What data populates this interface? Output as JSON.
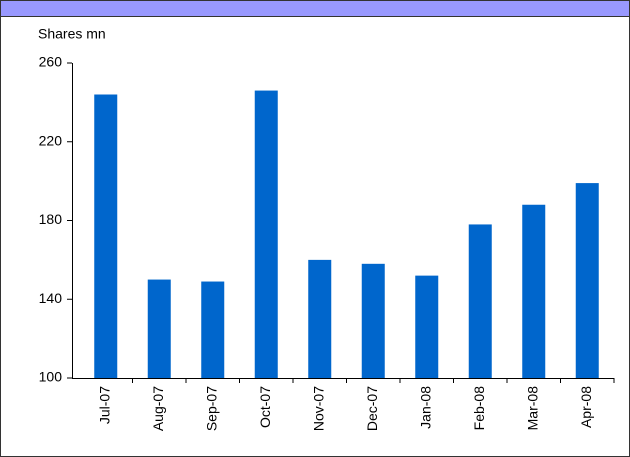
{
  "chart_data": {
    "type": "bar",
    "y_axis_label": "Shares mn",
    "categories": [
      "Jul-07",
      "Aug-07",
      "Sep-07",
      "Oct-07",
      "Nov-07",
      "Dec-07",
      "Jan-08",
      "Feb-08",
      "Mar-08",
      "Apr-08"
    ],
    "values": [
      244,
      150,
      149,
      246,
      160,
      158,
      152,
      178,
      188,
      199
    ],
    "color": "#0066cc",
    "ylim": [
      100,
      260
    ],
    "yticks": [
      100,
      140,
      180,
      220,
      260
    ],
    "grid": false
  }
}
